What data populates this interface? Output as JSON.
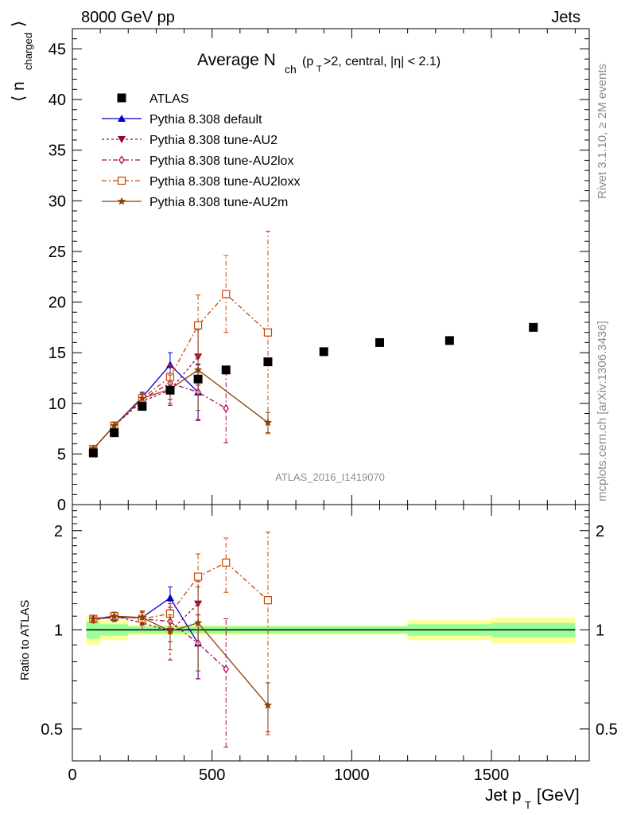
{
  "header": {
    "energy_label": "8000 GeV pp",
    "category_label": "Jets",
    "side_rivet": "Rivet 3.1.10, ≥ 2M events",
    "side_source": "mcplots.cern.ch [arXiv:1306.3436]",
    "watermark": "ATLAS_2016_I1419070"
  },
  "chart_data": [
    {
      "type": "scatter",
      "title_main": "Average N",
      "title_sub": "ch",
      "title_rest": "(p",
      "title_rest_sub": "T",
      "title_tail": ">2, central, |η| < 2.1)",
      "ylabel": "⟨ n",
      "ylabel_sub": "charged",
      "ylabel_close": "⟩",
      "xlim": [
        0,
        1850
      ],
      "ylim": [
        0,
        47
      ],
      "yticks": [
        0,
        5,
        10,
        15,
        20,
        25,
        30,
        35,
        40,
        45
      ],
      "xticks": [
        0,
        500,
        1000,
        1500
      ],
      "legend": "top-left",
      "series": [
        {
          "name": "ATLAS",
          "color": "#000000",
          "style": "data",
          "x": [
            75,
            150,
            250,
            350,
            450,
            550,
            700,
            900,
            1100,
            1350,
            1650
          ],
          "y": [
            5.1,
            7.1,
            9.7,
            11.3,
            12.4,
            13.3,
            14.1,
            15.1,
            16.0,
            16.2,
            17.5
          ]
        },
        {
          "name": "Pythia 8.308 default",
          "color": "#0000cc",
          "style": "solid",
          "marker": "triangle-up",
          "x": [
            75,
            150,
            250,
            350,
            450
          ],
          "y": [
            5.5,
            7.8,
            10.6,
            13.8,
            11.1
          ],
          "err": [
            0.2,
            0.3,
            0.5,
            1.2,
            2.7
          ]
        },
        {
          "name": "Pythia 8.308 tune-AU2",
          "color": "#990044",
          "style": "dashed",
          "marker": "triangle-down",
          "x": [
            75,
            150,
            250,
            350,
            450
          ],
          "y": [
            5.5,
            7.8,
            10.2,
            11.3,
            14.6
          ],
          "err": [
            0.2,
            0.3,
            0.5,
            1.5,
            2.8
          ]
        },
        {
          "name": "Pythia 8.308 tune-AU2lox",
          "color": "#b0004f",
          "style": "dashdot",
          "marker": "diamond-open",
          "x": [
            75,
            150,
            250,
            350,
            450,
            550
          ],
          "y": [
            5.5,
            7.8,
            10.4,
            12.0,
            11.1,
            9.5
          ],
          "err": [
            0.2,
            0.3,
            0.5,
            1.6,
            2.8,
            3.4
          ]
        },
        {
          "name": "Pythia 8.308 tune-AU2loxx",
          "color": "#cc4400",
          "style": "dashdot",
          "marker": "square-open",
          "x": [
            75,
            150,
            250,
            350,
            450,
            550,
            700
          ],
          "y": [
            5.5,
            7.8,
            10.5,
            12.6,
            17.7,
            20.8,
            17.0
          ],
          "err": [
            0.2,
            0.3,
            0.5,
            1.2,
            3.0,
            3.8,
            10.0
          ]
        },
        {
          "name": "Pythia 8.308 tune-AU2m",
          "color": "#8b4000",
          "style": "solid",
          "marker": "star",
          "x": [
            75,
            150,
            250,
            350,
            450,
            700
          ],
          "y": [
            5.5,
            7.8,
            10.5,
            11.4,
            13.3,
            8.1
          ],
          "err": [
            0.2,
            0.3,
            0.5,
            1.4,
            4.0,
            1.0
          ]
        }
      ]
    },
    {
      "type": "scatter",
      "ylabel": "Ratio to ATLAS",
      "xlabel": "Jet p",
      "xlabel_sub": "T",
      "xlabel_unit": "[GeV]",
      "xlim": [
        0,
        1850
      ],
      "ylim": [
        0.4,
        2.4
      ],
      "yticks": [
        0.5,
        1,
        2
      ],
      "xticks": [
        0,
        500,
        1000,
        1500
      ],
      "reference_line": 1,
      "uncertainty_bands": [
        {
          "x": [
            50,
            100
          ],
          "green": 0.06,
          "yellow": 0.1
        },
        {
          "x": [
            100,
            200
          ],
          "green": 0.04,
          "yellow": 0.07
        },
        {
          "x": [
            200,
            1200
          ],
          "green": 0.025,
          "yellow": 0.035
        },
        {
          "x": [
            1200,
            1500
          ],
          "green": 0.04,
          "yellow": 0.07
        },
        {
          "x": [
            1500,
            1800
          ],
          "green": 0.05,
          "yellow": 0.09
        }
      ],
      "series": [
        {
          "name": "Pythia 8.308 default",
          "color": "#0000cc",
          "style": "solid",
          "marker": "triangle-up",
          "x": [
            75,
            150,
            250,
            350,
            450
          ],
          "y": [
            1.08,
            1.09,
            1.09,
            1.25,
            0.91
          ],
          "err": [
            0.02,
            0.03,
            0.05,
            0.1,
            0.2
          ]
        },
        {
          "name": "Pythia 8.308 tune-AU2",
          "color": "#990044",
          "style": "dashed",
          "marker": "triangle-down",
          "x": [
            75,
            150,
            250,
            350,
            450
          ],
          "y": [
            1.07,
            1.1,
            1.05,
            0.99,
            1.2
          ],
          "err": [
            0.02,
            0.03,
            0.05,
            0.18,
            0.2
          ]
        },
        {
          "name": "Pythia 8.308 tune-AU2lox",
          "color": "#b0004f",
          "style": "dashdot",
          "marker": "diamond-open",
          "x": [
            75,
            150,
            250,
            350,
            450,
            550
          ],
          "y": [
            1.08,
            1.1,
            1.08,
            1.06,
            0.91,
            0.76
          ],
          "err": [
            0.02,
            0.03,
            0.05,
            0.14,
            0.2,
            0.32
          ]
        },
        {
          "name": "Pythia 8.308 tune-AU2loxx",
          "color": "#cc4400",
          "style": "dashdot",
          "marker": "square-open",
          "x": [
            75,
            150,
            250,
            350,
            450,
            550,
            700
          ],
          "y": [
            1.08,
            1.1,
            1.08,
            1.12,
            1.45,
            1.6,
            1.23
          ],
          "err": [
            0.02,
            0.03,
            0.05,
            0.1,
            0.25,
            0.3,
            0.75
          ]
        },
        {
          "name": "Pythia 8.308 tune-AU2m",
          "color": "#8b4000",
          "style": "solid",
          "marker": "star",
          "x": [
            75,
            150,
            250,
            350,
            450,
            700
          ],
          "y": [
            1.08,
            1.1,
            1.09,
            0.99,
            1.05,
            0.59
          ],
          "err": [
            0.02,
            0.03,
            0.05,
            0.12,
            0.3,
            0.1
          ]
        }
      ]
    }
  ]
}
